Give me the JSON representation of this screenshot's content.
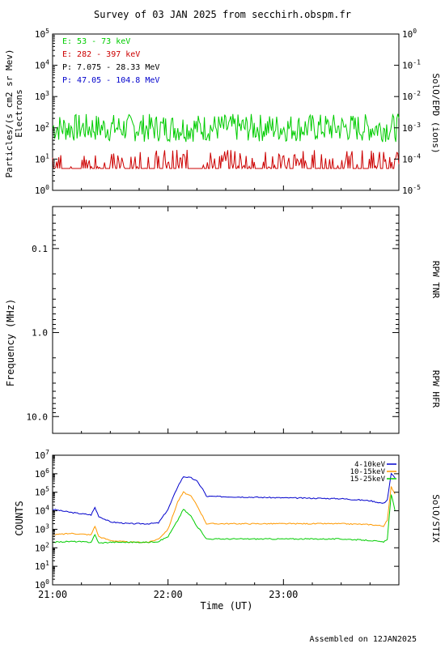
{
  "title": "Survey of 03 JAN 2025 from secchirh.obspm.fr",
  "footer": "Assembled on  12JAN2025",
  "chart_data": [
    {
      "type": "line",
      "panel": "SolO/EPD",
      "ylabel_line1": "Particles/(s cm2 sr Mev)",
      "ylabel_line2": "Electrons",
      "right_label": "SolO/EPD (ions)",
      "log_scale": true,
      "ylim": [
        1,
        100000
      ],
      "y_ticks": [
        "10^0",
        "10^1",
        "10^2",
        "10^3",
        "10^4",
        "10^5"
      ],
      "right_ticks": [
        "10^-5",
        "10^-4",
        "10^-3",
        "10^-2",
        "10^-1",
        "10^0"
      ],
      "xlim": [
        "21:00",
        "24:00"
      ],
      "legend": [
        {
          "label": "E: 53 - 73 keV",
          "color": "#00cc00"
        },
        {
          "label": "E: 282 - 397 keV",
          "color": "#cc0000"
        },
        {
          "label": "P: 7.075 - 28.33 MeV",
          "color": "#000000"
        },
        {
          "label": "P: 47.05 - 104.8 MeV",
          "color": "#0000cc"
        }
      ],
      "series": [
        {
          "name": "E: 53 - 73 keV",
          "color": "#00cc00",
          "typical_level": 100,
          "min": 30,
          "max": 300
        },
        {
          "name": "E: 282 - 397 keV",
          "color": "#cc0000",
          "typical_level": 5,
          "min": 5,
          "max": 20
        }
      ]
    },
    {
      "type": "heatmap",
      "panel": "RPW",
      "ylabel": "Frequency (MHz)",
      "right_label_top": "RPW TNR",
      "right_label_bottom": "RPW HFR",
      "y_ticks": [
        "0.1",
        "1.0",
        "10.0"
      ],
      "log_scale": true,
      "inverted": true
    },
    {
      "type": "line",
      "panel": "SolO/STIX",
      "ylabel": "COUNTS",
      "right_label": "SolO/STIX",
      "log_scale": true,
      "ylim": [
        1,
        10000000
      ],
      "y_ticks": [
        "10^0",
        "10^1",
        "10^2",
        "10^3",
        "10^4",
        "10^5",
        "10^6",
        "10^7"
      ],
      "x_ticks": [
        "21:00",
        "22:00",
        "23:00"
      ],
      "xlabel": "Time (UT)",
      "legend": [
        {
          "label": "4-10keV",
          "color": "#0000cc"
        },
        {
          "label": "10-15keV",
          "color": "#ff9900"
        },
        {
          "label": "15-25keV",
          "color": "#00cc00"
        }
      ],
      "series": [
        {
          "name": "4-10keV",
          "color": "#0000cc",
          "x": [
            "21:00",
            "21:10",
            "21:20",
            "21:22",
            "21:24",
            "21:30",
            "21:40",
            "21:50",
            "21:55",
            "22:00",
            "22:05",
            "22:08",
            "22:12",
            "22:15",
            "22:18",
            "22:20",
            "22:40",
            "23:00",
            "23:30",
            "23:45",
            "23:52",
            "23:54",
            "23:56",
            "23:58"
          ],
          "y": [
            12000,
            8000,
            6000,
            15000,
            5000,
            2500,
            2000,
            2000,
            2200,
            12000,
            200000,
            700000,
            600000,
            400000,
            150000,
            60000,
            55000,
            50000,
            45000,
            35000,
            25000,
            40000,
            1000000,
            600000
          ]
        },
        {
          "name": "10-15keV",
          "color": "#ff9900",
          "x": [
            "21:00",
            "21:10",
            "21:20",
            "21:22",
            "21:24",
            "21:30",
            "21:40",
            "21:50",
            "21:55",
            "22:00",
            "22:05",
            "22:08",
            "22:12",
            "22:15",
            "22:18",
            "22:20",
            "22:40",
            "23:00",
            "23:30",
            "23:45",
            "23:52",
            "23:54",
            "23:56",
            "23:58"
          ],
          "y": [
            500,
            600,
            500,
            1500,
            400,
            250,
            200,
            200,
            300,
            1000,
            30000,
            100000,
            60000,
            20000,
            5000,
            2000,
            2000,
            2000,
            2000,
            1800,
            1500,
            3000,
            200000,
            80000
          ]
        },
        {
          "name": "15-25keV",
          "color": "#00cc00",
          "x": [
            "21:00",
            "21:10",
            "21:20",
            "21:22",
            "21:24",
            "21:30",
            "21:40",
            "21:50",
            "21:55",
            "22:00",
            "22:05",
            "22:08",
            "22:12",
            "22:15",
            "22:18",
            "22:20",
            "22:40",
            "23:00",
            "23:30",
            "23:45",
            "23:52",
            "23:54",
            "23:56",
            "23:58"
          ],
          "y": [
            200,
            220,
            200,
            500,
            180,
            200,
            200,
            200,
            220,
            400,
            3000,
            12000,
            5000,
            1500,
            600,
            300,
            300,
            300,
            300,
            250,
            200,
            300,
            80000,
            10000
          ]
        }
      ]
    }
  ]
}
